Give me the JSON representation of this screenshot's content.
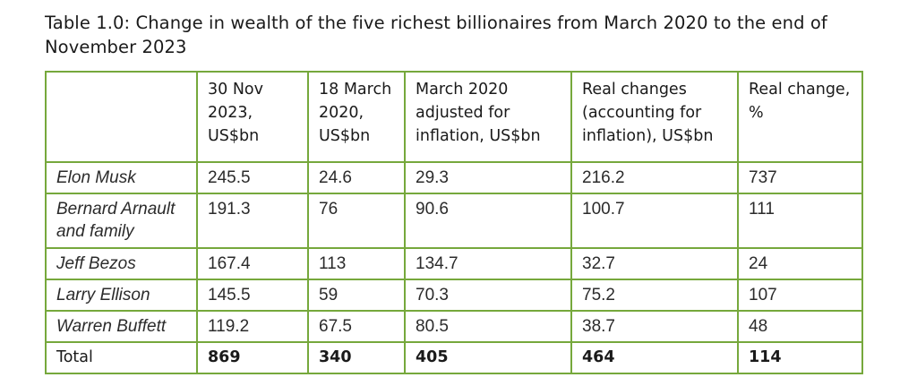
{
  "title": "Table 1.0: Change in wealth of the five richest billionaires from March 2020 to the end of November 2023",
  "table": {
    "headers": [
      "",
      "30 Nov 2023, US$bn",
      "18 March 2020, US$bn",
      "March 2020 adjusted for inflation, US$bn",
      "Real changes (accounting for inflation), US$bn",
      "Real change, %"
    ],
    "rows": [
      {
        "name": "Elon Musk",
        "nov2023": "245.5",
        "mar2020": "24.6",
        "mar2020_adj": "29.3",
        "real_change": "216.2",
        "real_change_pct": "737"
      },
      {
        "name": "Bernard Arnault and family",
        "nov2023": "191.3",
        "mar2020": "76",
        "mar2020_adj": "90.6",
        "real_change": "100.7",
        "real_change_pct": "111"
      },
      {
        "name": "Jeff Bezos",
        "nov2023": "167.4",
        "mar2020": "113",
        "mar2020_adj": "134.7",
        "real_change": "32.7",
        "real_change_pct": "24"
      },
      {
        "name": "Larry Ellison",
        "nov2023": "145.5",
        "mar2020": "59",
        "mar2020_adj": "70.3",
        "real_change": "75.2",
        "real_change_pct": "107"
      },
      {
        "name": "Warren Buffett",
        "nov2023": "119.2",
        "mar2020": "67.5",
        "mar2020_adj": "80.5",
        "real_change": "38.7",
        "real_change_pct": "48"
      }
    ],
    "total": {
      "label": "Total",
      "nov2023": "869",
      "mar2020": "340",
      "mar2020_adj": "405",
      "real_change": "464",
      "real_change_pct": "114"
    }
  },
  "colors": {
    "border": "#76a83c",
    "text": "#1a1a1a"
  }
}
